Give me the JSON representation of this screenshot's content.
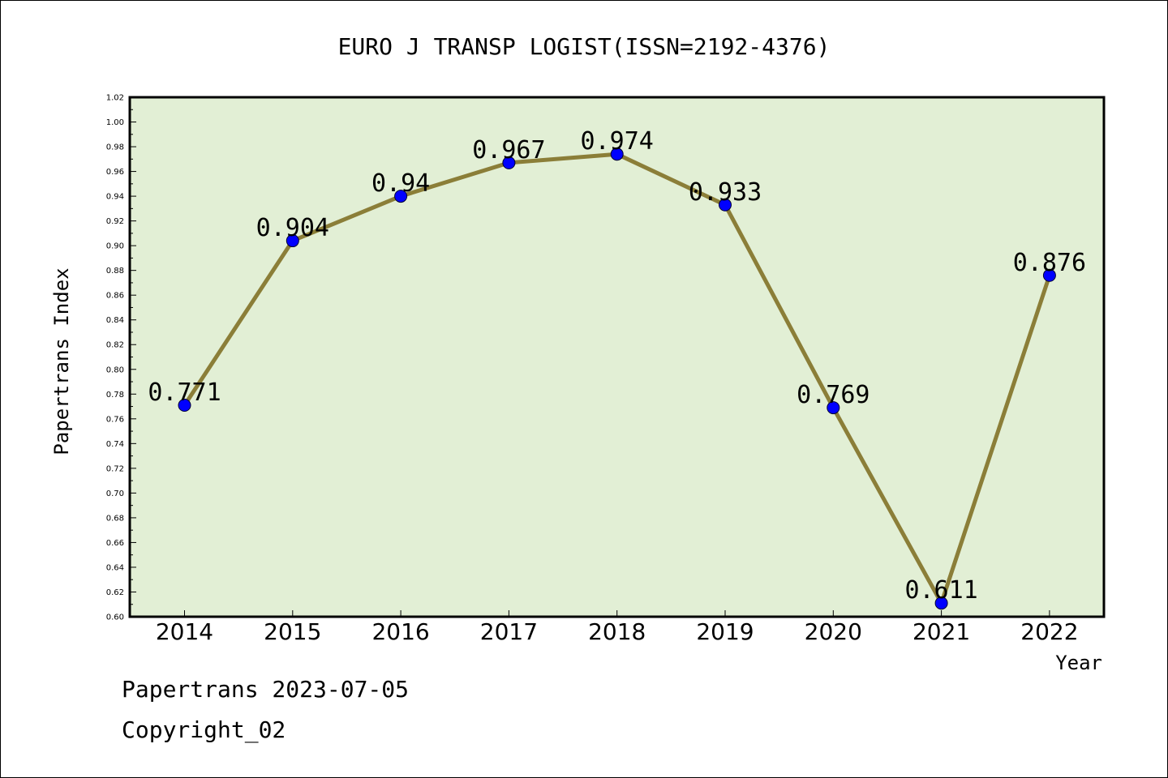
{
  "chart_data": {
    "type": "line",
    "title": "EURO J TRANSP LOGIST(ISSN=2192-4376)",
    "xlabel": "Year",
    "ylabel": "Papertrans Index",
    "categories": [
      "2014",
      "2015",
      "2016",
      "2017",
      "2018",
      "2019",
      "2020",
      "2021",
      "2022"
    ],
    "values": [
      0.771,
      0.904,
      0.94,
      0.967,
      0.974,
      0.933,
      0.769,
      0.611,
      0.876
    ],
    "data_labels": [
      "0.771",
      "0.904",
      "0.94",
      "0.967",
      "0.974",
      "0.933",
      "0.769",
      "0.611",
      "0.876"
    ],
    "ylim": [
      0.6,
      1.02
    ],
    "yticks": [
      "0.60",
      "0.62",
      "0.64",
      "0.66",
      "0.68",
      "0.70",
      "0.72",
      "0.74",
      "0.76",
      "0.78",
      "0.80",
      "0.82",
      "0.84",
      "0.86",
      "0.88",
      "0.90",
      "0.92",
      "0.94",
      "0.96",
      "0.98",
      "1.00",
      "1.02"
    ],
    "grid": false,
    "colors": {
      "plot_bg": "#e2efd5",
      "line": "#8b7e38",
      "marker": "#0000ff"
    }
  },
  "footer": {
    "line1": "Papertrans 2023-07-05",
    "line2": "Copyright_02"
  }
}
